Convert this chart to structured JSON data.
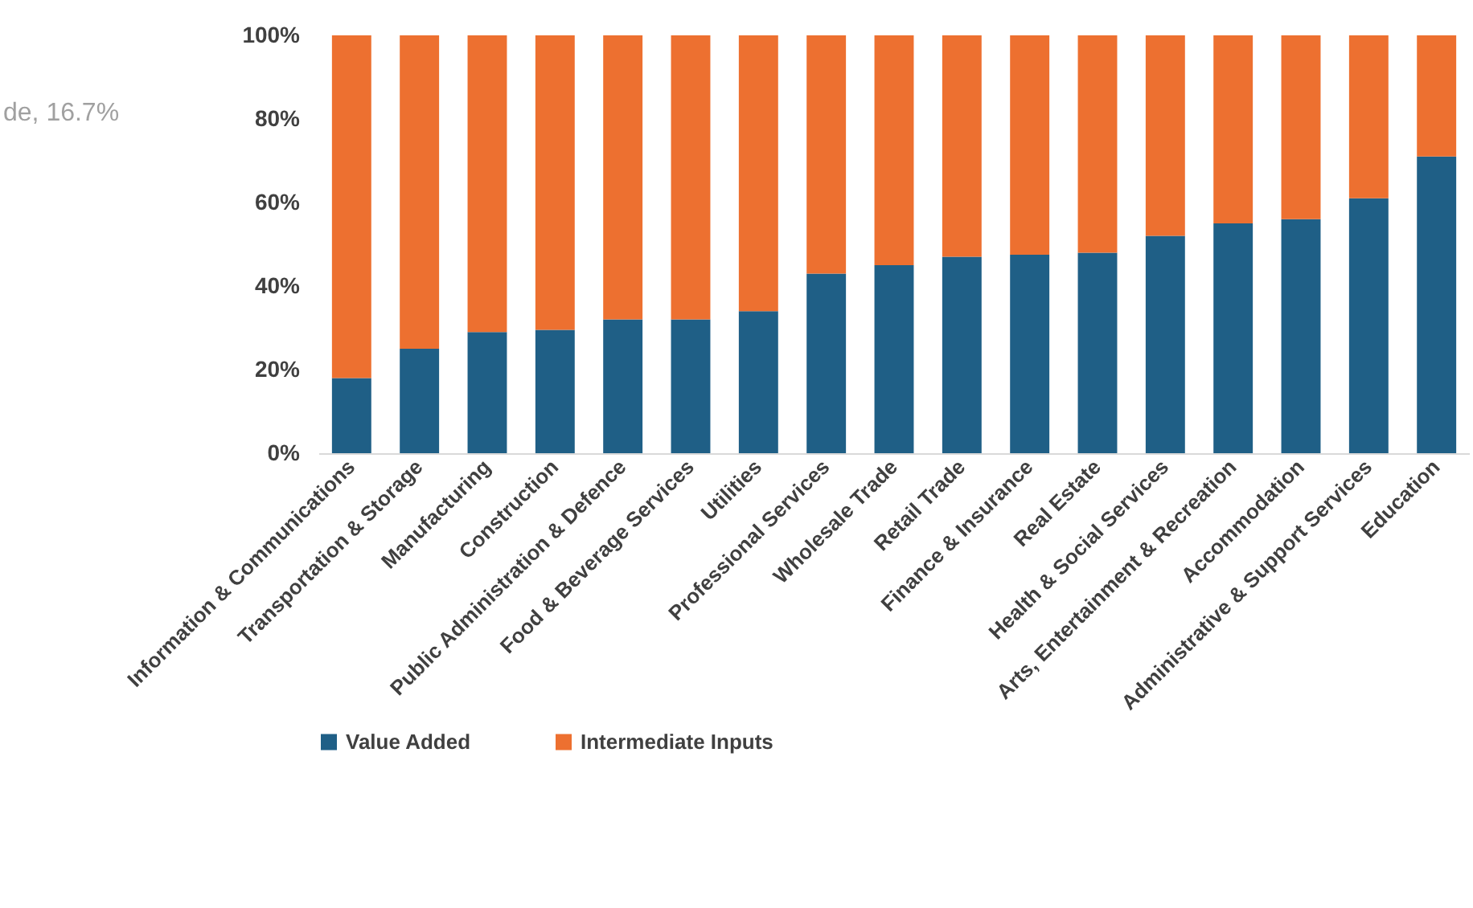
{
  "chart_data": {
    "type": "bar",
    "stacked": true,
    "categories": [
      "Information & Communications",
      "Transportation & Storage",
      "Manufacturing",
      "Construction",
      "Public Administration & Defence",
      "Food & Beverage Services",
      "Utilities",
      "Professional Services",
      "Wholesale Trade",
      "Retail Trade",
      "Finance & Insurance",
      "Real Estate",
      "Health & Social Services",
      "Arts, Entertainment & Recreation",
      "Accommodation",
      "Administrative & Support Services",
      "Education"
    ],
    "series": [
      {
        "name": "Value Added",
        "color": "#1f5f86",
        "values": [
          18,
          25,
          29,
          29.5,
          32,
          32,
          34,
          43,
          45,
          47,
          47.5,
          48,
          52,
          55,
          56,
          61,
          71
        ]
      },
      {
        "name": "Intermediate Inputs",
        "color": "#ed7030",
        "values": [
          82,
          75,
          71,
          70.5,
          68,
          68,
          66,
          57,
          55,
          53,
          52.5,
          52,
          48,
          45,
          44,
          39,
          29
        ]
      }
    ],
    "ylim": [
      0,
      100
    ],
    "yticks": [
      {
        "value": 0,
        "label": "0%"
      },
      {
        "value": 20,
        "label": "20%"
      },
      {
        "value": 40,
        "label": "40%"
      },
      {
        "value": 60,
        "label": "60%"
      },
      {
        "value": 80,
        "label": "80%"
      },
      {
        "value": 100,
        "label": "100%"
      }
    ],
    "grid": false,
    "legend": "bottom",
    "annotations": [
      "de, 16.7%"
    ]
  }
}
